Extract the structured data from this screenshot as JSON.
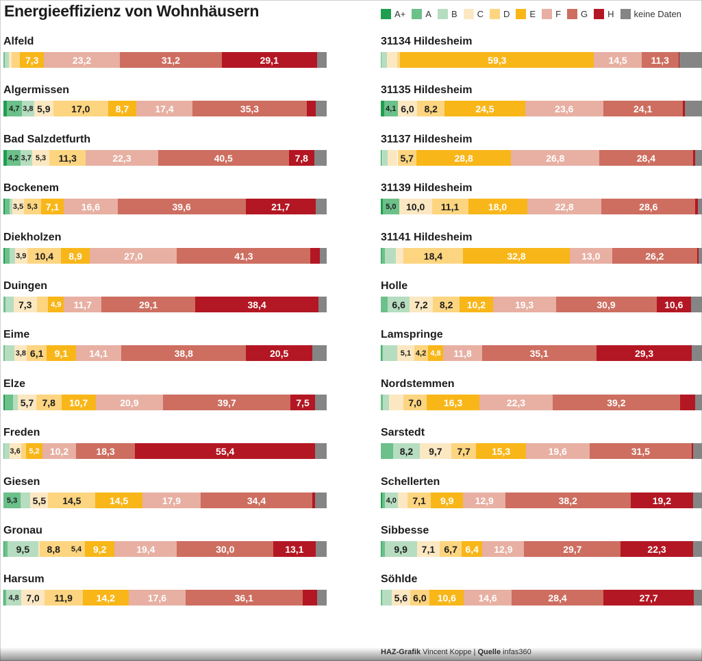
{
  "title": "Energieeffizienz von Wohnhäusern",
  "legend": [
    {
      "label": "A+",
      "color": "#1f9e4f"
    },
    {
      "label": "A",
      "color": "#6cc08a"
    },
    {
      "label": "B",
      "color": "#b6ddc0"
    },
    {
      "label": "C",
      "color": "#fbe8c2"
    },
    {
      "label": "D",
      "color": "#fdd580"
    },
    {
      "label": "E",
      "color": "#f8b619"
    },
    {
      "label": "F",
      "color": "#e7b0a3"
    },
    {
      "label": "G",
      "color": "#cd6e60"
    },
    {
      "label": "H",
      "color": "#b31723"
    },
    {
      "label": "keine Daten",
      "color": "#858585"
    }
  ],
  "footer": {
    "brand": "HAZ-Grafik",
    "author": "Vincent Koppe",
    "separator": "|",
    "source_label": "Quelle",
    "source": "infas360"
  },
  "chart_data": {
    "type": "bar",
    "subtype": "stacked-horizontal-100",
    "title": "Energieeffizienz von Wohnhäusern",
    "series_keys": [
      "A+",
      "A",
      "B",
      "C",
      "D",
      "E",
      "F",
      "G",
      "H",
      "keine Daten"
    ],
    "unit": "percent",
    "rows": [
      {
        "name": "Alfeld",
        "values": [
          0.0,
          0.5,
          1.1,
          1.0,
          2.5,
          7.3,
          23.2,
          31.2,
          29.1,
          3.0
        ],
        "labels": [
          "",
          "",
          "",
          "",
          "",
          "7,3",
          "23,2",
          "31,2",
          "29,1",
          ""
        ]
      },
      {
        "name": "Algermissen",
        "values": [
          1.0,
          4.7,
          3.8,
          5.9,
          17.0,
          8.7,
          17.4,
          35.3,
          2.8,
          3.4
        ],
        "labels": [
          "",
          "4,7",
          "3,8",
          "5,9",
          "17,0",
          "8,7",
          "17,4",
          "35,3",
          "",
          ""
        ]
      },
      {
        "name": "Bad Salzdetfurth",
        "values": [
          1.0,
          4.2,
          3.7,
          5.3,
          11.3,
          22.3,
          40.5,
          7.8,
          0.0,
          3.9
        ],
        "labels": [
          "",
          "4,2",
          "3,7",
          "5,3",
          "11,3",
          "22,3",
          "40,5",
          "7,8",
          "",
          ""
        ],
        "cats": [
          0,
          1,
          2,
          3,
          4,
          6,
          7,
          8,
          5,
          9
        ]
      },
      {
        "name": "Bockenem",
        "values": [
          0.5,
          1.5,
          0.8,
          3.5,
          5.3,
          7.1,
          16.6,
          39.6,
          21.7,
          3.4
        ],
        "labels": [
          "",
          "",
          "",
          "3,5",
          "5,3",
          "7,1",
          "16,6",
          "39,6",
          "21,7",
          ""
        ]
      },
      {
        "name": "Diekholzen",
        "values": [
          0.5,
          1.5,
          1.5,
          3.9,
          10.4,
          8.9,
          27.0,
          41.3,
          2.8,
          2.2
        ],
        "labels": [
          "",
          "",
          "",
          "3,9",
          "10,4",
          "8,9",
          "27,0",
          "41,3",
          "",
          ""
        ]
      },
      {
        "name": "Duingen",
        "values": [
          0.0,
          0.6,
          2.5,
          7.3,
          3.5,
          4.9,
          11.7,
          29.1,
          38.4,
          2.5
        ],
        "labels": [
          "",
          "",
          "",
          "7,3",
          "",
          "4,9",
          "11,7",
          "29,1",
          "38,4",
          ""
        ]
      },
      {
        "name": "Eime",
        "values": [
          0.0,
          0.5,
          3.0,
          3.8,
          6.1,
          9.1,
          14.1,
          38.8,
          20.5,
          4.5
        ],
        "labels": [
          "",
          "",
          "",
          "3,8",
          "6,1",
          "9,1",
          "14,1",
          "38,8",
          "20,5",
          ""
        ]
      },
      {
        "name": "Elze",
        "values": [
          0.5,
          2.5,
          1.5,
          5.7,
          7.8,
          10.7,
          20.9,
          39.7,
          7.5,
          3.7
        ],
        "labels": [
          "",
          "",
          "",
          "5,7",
          "7,8",
          "10,7",
          "20,9",
          "39,7",
          "7,5",
          ""
        ]
      },
      {
        "name": "Freden",
        "values": [
          0.0,
          0.3,
          1.5,
          3.6,
          1.5,
          5.2,
          10.2,
          18.3,
          55.4,
          3.6
        ],
        "labels": [
          "",
          "",
          "",
          "3,6",
          "",
          "5,2",
          "10,2",
          "18,3",
          "55,4",
          ""
        ]
      },
      {
        "name": "Giesen",
        "values": [
          0.0,
          5.3,
          3.0,
          5.5,
          14.5,
          14.5,
          17.9,
          34.4,
          0.9,
          3.5
        ],
        "labels": [
          "",
          "5,3",
          "",
          "5,5",
          "14,5",
          "14,5",
          "17,9",
          "34,4",
          "",
          ""
        ]
      },
      {
        "name": "Gronau",
        "values": [
          0.3,
          1.0,
          9.5,
          0.4,
          8.8,
          5.4,
          9.2,
          19.4,
          30.0,
          13.1,
          3.5
        ],
        "labels": [
          "",
          "",
          "9,5",
          "",
          "8,8",
          "5,4",
          "9,2",
          "19,4",
          "30,0",
          "13,1",
          ""
        ],
        "cats": [
          0,
          1,
          2,
          3,
          4,
          4,
          5,
          6,
          7,
          8,
          9
        ]
      },
      {
        "name": "Harsum",
        "values": [
          0.3,
          0.5,
          4.8,
          7.0,
          11.9,
          14.2,
          17.6,
          36.1,
          4.5,
          3.0
        ],
        "labels": [
          "",
          "",
          "4,8",
          "7,0",
          "11,9",
          "14,2",
          "17,6",
          "36,1",
          "",
          ""
        ]
      },
      {
        "name": "31134 Hildesheim",
        "values": [
          0.0,
          0.3,
          1.5,
          3.3,
          0.8,
          59.3,
          14.5,
          11.3,
          0.2,
          7.6
        ],
        "labels": [
          "",
          "",
          "",
          "",
          "",
          "59,3",
          "14,5",
          "11,3",
          "",
          ""
        ]
      },
      {
        "name": "31135 Hildesheim",
        "values": [
          1.0,
          4.1,
          6.0,
          8.2,
          24.5,
          23.6,
          24.1,
          0.6,
          5.9
        ],
        "labels": [
          "",
          "4,1",
          "6,0",
          "8,2",
          "24,5",
          "23,6",
          "24,1",
          "",
          ""
        ],
        "cats": [
          0,
          1,
          3,
          4,
          5,
          6,
          7,
          8,
          9
        ]
      },
      {
        "name": "31137 Hildesheim",
        "values": [
          0.3,
          1.8,
          3.0,
          5.7,
          28.8,
          26.8,
          28.4,
          0.6,
          2.8
        ],
        "labels": [
          "",
          "",
          "",
          "5,7",
          "28,8",
          "26,8",
          "28,4",
          "",
          ""
        ],
        "cats": [
          0,
          2,
          3,
          4,
          5,
          6,
          7,
          8,
          9
        ]
      },
      {
        "name": "31139 Hildesheim",
        "values": [
          0.6,
          5.0,
          10.0,
          11.1,
          18.0,
          22.8,
          28.6,
          0.8,
          1.9
        ],
        "labels": [
          "",
          "5,0",
          "10,0",
          "11,1",
          "18,0",
          "22,8",
          "28,6",
          "",
          ""
        ],
        "cats": [
          0,
          1,
          3,
          4,
          5,
          6,
          7,
          8,
          9
        ]
      },
      {
        "name": "31141 Hildesheim",
        "values": [
          0.3,
          1.0,
          3.4,
          2.2,
          18.4,
          32.8,
          13.0,
          26.2,
          0.5,
          1.6
        ],
        "labels": [
          "",
          "",
          "",
          "",
          "18,4",
          "32,8",
          "13,0",
          "26,2",
          "",
          ""
        ]
      },
      {
        "name": "Holle",
        "values": [
          2.2,
          6.6,
          7.2,
          8.2,
          10.2,
          19.3,
          30.9,
          10.6,
          4.0
        ],
        "labels": [
          "",
          "6,6",
          "7,2",
          "8,2",
          "10,2",
          "19,3",
          "30,9",
          "10,6",
          ""
        ],
        "cats": [
          1,
          2,
          3,
          4,
          5,
          6,
          7,
          8,
          9
        ]
      },
      {
        "name": "Lamspringe",
        "values": [
          0.3,
          0.3,
          4.5,
          5.1,
          4.2,
          4.8,
          11.8,
          35.1,
          29.3,
          3.7
        ],
        "labels": [
          "",
          "",
          "",
          "5,1",
          "4,2",
          "4,8",
          "11,8",
          "35,1",
          "29,3",
          ""
        ]
      },
      {
        "name": "Nordstemmen",
        "values": [
          0.0,
          0.6,
          2.0,
          4.4,
          7.0,
          16.3,
          22.3,
          39.2,
          4.5,
          2.8
        ],
        "labels": [
          "",
          "",
          "",
          "",
          "7,0",
          "16,3",
          "22,3",
          "39,2",
          "",
          ""
        ]
      },
      {
        "name": "Sarstedt",
        "values": [
          0.0,
          3.8,
          8.2,
          9.7,
          7.7,
          15.3,
          19.6,
          31.5,
          0.5,
          3.3
        ],
        "labels": [
          "",
          "",
          "8,2",
          "9,7",
          "7,7",
          "15,3",
          "19,6",
          "31,5",
          "",
          ""
        ]
      },
      {
        "name": "Schellerten",
        "values": [
          0.4,
          0.8,
          4.0,
          3.0,
          7.1,
          9.9,
          12.9,
          38.2,
          19.2,
          3.3
        ],
        "labels": [
          "",
          "",
          "4,0",
          "",
          "7,1",
          "9,9",
          "12,9",
          "38,2",
          "19,2",
          ""
        ]
      },
      {
        "name": "Sibbesse",
        "values": [
          0.3,
          0.9,
          9.9,
          7.1,
          6.7,
          6.4,
          12.9,
          29.7,
          22.3,
          3.4
        ],
        "labels": [
          "",
          "",
          "9,9",
          "7,1",
          "6,7",
          "6,4",
          "12,9",
          "29,7",
          "22,3",
          ""
        ]
      },
      {
        "name": "Söhlde",
        "values": [
          0.0,
          0.4,
          3.0,
          5.6,
          6.0,
          10.6,
          14.6,
          28.4,
          27.7,
          3.2
        ],
        "labels": [
          "",
          "",
          "",
          "5,6",
          "6,0",
          "10,6",
          "14,6",
          "28,4",
          "27,7",
          ""
        ]
      }
    ]
  }
}
